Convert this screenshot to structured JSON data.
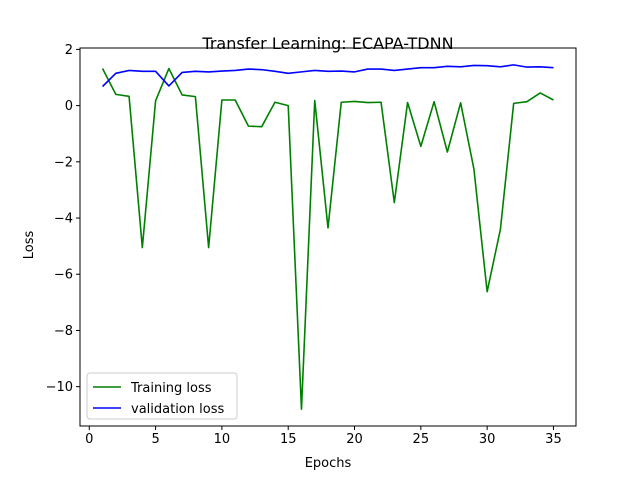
{
  "chart_data": {
    "type": "line",
    "title": "Transfer Learning: ECAPA-TDNN",
    "xlabel": "Epochs",
    "ylabel": "Loss",
    "xlim": [
      -0.7,
      36.7
    ],
    "ylim": [
      -11.4,
      2.05
    ],
    "xticks": [
      0,
      5,
      10,
      15,
      20,
      25,
      30,
      35
    ],
    "yticks": [
      2,
      0,
      -2,
      -4,
      -6,
      -8,
      -10
    ],
    "ytick_labels": [
      "2",
      "0",
      "−2",
      "−4",
      "−6",
      "−8",
      "−10"
    ],
    "grid": false,
    "legend_position": "lower left",
    "x": [
      1,
      2,
      3,
      4,
      5,
      6,
      7,
      8,
      9,
      10,
      11,
      12,
      13,
      14,
      15,
      16,
      17,
      18,
      19,
      20,
      21,
      22,
      23,
      24,
      25,
      26,
      27,
      28,
      29,
      30,
      31,
      32,
      33,
      34,
      35
    ],
    "series": [
      {
        "name": "Training loss",
        "color": "#008000",
        "values": [
          1.32,
          0.4,
          0.33,
          -5.05,
          0.17,
          1.32,
          0.38,
          0.32,
          -5.05,
          0.2,
          0.2,
          -0.73,
          -0.75,
          0.12,
          0.0,
          -10.8,
          0.18,
          -4.35,
          0.12,
          0.15,
          0.11,
          0.12,
          -3.45,
          0.11,
          -1.45,
          0.14,
          -1.65,
          0.1,
          -2.25,
          -6.62,
          -4.4,
          0.08,
          0.14,
          0.45,
          0.2
        ]
      },
      {
        "name": "validation loss",
        "color": "#0000ff",
        "values": [
          0.68,
          1.15,
          1.25,
          1.22,
          1.22,
          0.7,
          1.18,
          1.22,
          1.2,
          1.23,
          1.25,
          1.3,
          1.28,
          1.22,
          1.15,
          1.2,
          1.25,
          1.22,
          1.23,
          1.2,
          1.3,
          1.3,
          1.25,
          1.3,
          1.35,
          1.35,
          1.4,
          1.38,
          1.43,
          1.42,
          1.38,
          1.45,
          1.37,
          1.38,
          1.35
        ]
      }
    ]
  }
}
